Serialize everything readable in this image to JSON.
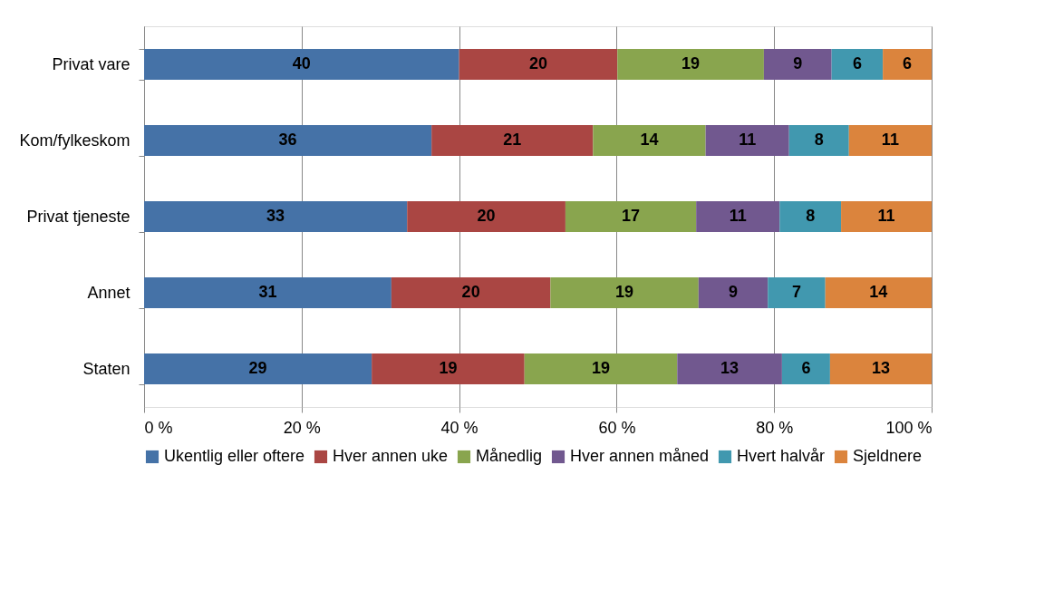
{
  "chart_data": {
    "type": "bar",
    "orientation": "horizontal",
    "stacked": true,
    "categories": [
      "Privat vare",
      "Kom/fylkeskom",
      "Privat tjeneste",
      "Annet",
      "Staten"
    ],
    "series": [
      {
        "name": "Ukentlig eller oftere",
        "color": "#4572a7",
        "values": [
          40.0,
          36.5,
          33.4,
          31.4,
          28.9
        ],
        "value_labels": [
          "40",
          "36",
          "33",
          "31",
          "29"
        ]
      },
      {
        "name": "Hver annen uke",
        "color": "#aa4643",
        "values": [
          20.1,
          20.5,
          20.1,
          20.2,
          19.4
        ],
        "value_labels": [
          "20",
          "21",
          "20",
          "20",
          "19"
        ]
      },
      {
        "name": "Månedlig",
        "color": "#89a54e",
        "values": [
          18.6,
          14.3,
          16.6,
          18.8,
          19.4
        ],
        "value_labels": [
          "19",
          "14",
          "17",
          "19",
          "19"
        ]
      },
      {
        "name": "Hver annen måned",
        "color": "#71588f",
        "values": [
          8.6,
          10.6,
          10.6,
          8.8,
          13.3
        ],
        "value_labels": [
          "9",
          "11",
          "11",
          "9",
          "13"
        ]
      },
      {
        "name": "Hvert halvår",
        "color": "#4198af",
        "values": [
          6.5,
          7.6,
          7.8,
          7.3,
          6.1
        ],
        "value_labels": [
          "6",
          "8",
          "8",
          "7",
          "6"
        ]
      },
      {
        "name": "Sjeldnere",
        "color": "#db843d",
        "values": [
          6.2,
          10.5,
          11.5,
          13.5,
          12.9
        ],
        "value_labels": [
          "6",
          "11",
          "11",
          "14",
          "13"
        ]
      }
    ],
    "xlim": [
      0,
      100
    ],
    "xticks": [
      {
        "value": 0,
        "label": "0 %"
      },
      {
        "value": 20,
        "label": "20 %"
      },
      {
        "value": 40,
        "label": "40 %"
      },
      {
        "value": 60,
        "label": "60 %"
      },
      {
        "value": 80,
        "label": "80 %"
      },
      {
        "value": 100,
        "label": "100 %"
      }
    ],
    "grid": "x",
    "legend": "bottom"
  }
}
